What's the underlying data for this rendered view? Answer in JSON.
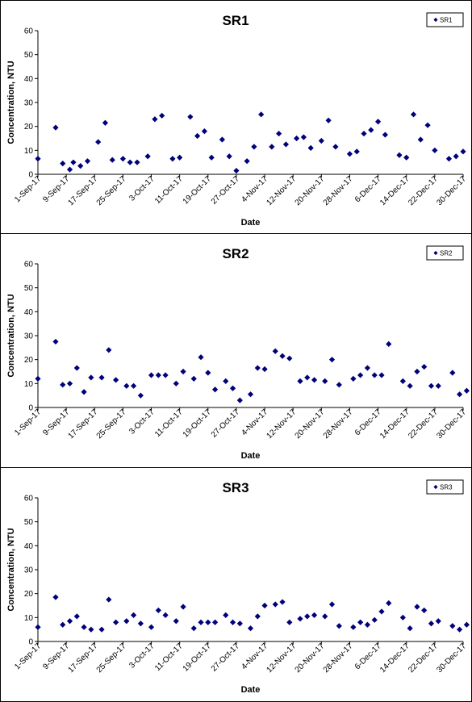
{
  "colors": {
    "marker": "#00007a",
    "axis": "#000000"
  },
  "chart_data": [
    {
      "type": "scatter",
      "title": "SR1",
      "xlabel": "Date",
      "ylabel": "Concentration, NTU",
      "legend": "top-right",
      "grid": false,
      "ylim": [
        0,
        60
      ],
      "yticks": [
        0,
        10,
        20,
        30,
        40,
        50,
        60
      ],
      "xlim": [
        "2017-09-01",
        "2017-12-30"
      ],
      "xticks": [
        "1-Sep-17",
        "9-Sep-17",
        "17-Sep-17",
        "25-Sep-17",
        "3-Oct-17",
        "11-Oct-17",
        "19-Oct-17",
        "27-Oct-17",
        "4-Nov-17",
        "12-Nov-17",
        "20-Nov-17",
        "28-Nov-17",
        "6-Dec-17",
        "14-Dec-17",
        "22-Dec-17",
        "30-Dec-17"
      ],
      "series": [
        {
          "name": "SR1",
          "points": [
            [
              "2017-09-01",
              6.5
            ],
            [
              "2017-09-06",
              19.5
            ],
            [
              "2017-09-08",
              4.5
            ],
            [
              "2017-09-10",
              2.0
            ],
            [
              "2017-09-11",
              5.0
            ],
            [
              "2017-09-13",
              3.5
            ],
            [
              "2017-09-15",
              5.5
            ],
            [
              "2017-09-18",
              13.5
            ],
            [
              "2017-09-20",
              21.5
            ],
            [
              "2017-09-22",
              6.0
            ],
            [
              "2017-09-25",
              6.5
            ],
            [
              "2017-09-27",
              5.0
            ],
            [
              "2017-09-29",
              5.0
            ],
            [
              "2017-10-02",
              7.5
            ],
            [
              "2017-10-04",
              23.0
            ],
            [
              "2017-10-06",
              24.5
            ],
            [
              "2017-10-09",
              6.5
            ],
            [
              "2017-10-11",
              7.0
            ],
            [
              "2017-10-14",
              24.0
            ],
            [
              "2017-10-16",
              16.0
            ],
            [
              "2017-10-18",
              18.0
            ],
            [
              "2017-10-20",
              7.0
            ],
            [
              "2017-10-23",
              14.5
            ],
            [
              "2017-10-25",
              7.5
            ],
            [
              "2017-10-27",
              1.5
            ],
            [
              "2017-10-30",
              5.5
            ],
            [
              "2017-11-01",
              11.5
            ],
            [
              "2017-11-03",
              25.0
            ],
            [
              "2017-11-06",
              11.5
            ],
            [
              "2017-11-08",
              17.0
            ],
            [
              "2017-11-10",
              12.5
            ],
            [
              "2017-11-13",
              15.0
            ],
            [
              "2017-11-15",
              15.5
            ],
            [
              "2017-11-17",
              11.0
            ],
            [
              "2017-11-20",
              14.0
            ],
            [
              "2017-11-22",
              22.5
            ],
            [
              "2017-11-24",
              11.5
            ],
            [
              "2017-11-28",
              8.5
            ],
            [
              "2017-11-30",
              9.5
            ],
            [
              "2017-12-02",
              17.0
            ],
            [
              "2017-12-04",
              18.5
            ],
            [
              "2017-12-06",
              22.0
            ],
            [
              "2017-12-08",
              16.5
            ],
            [
              "2017-12-12",
              8.0
            ],
            [
              "2017-12-14",
              7.0
            ],
            [
              "2017-12-16",
              25.0
            ],
            [
              "2017-12-18",
              14.5
            ],
            [
              "2017-12-20",
              20.5
            ],
            [
              "2017-12-22",
              10.0
            ],
            [
              "2017-12-26",
              6.5
            ],
            [
              "2017-12-28",
              7.5
            ],
            [
              "2017-12-30",
              9.5
            ]
          ]
        }
      ]
    },
    {
      "type": "scatter",
      "title": "SR2",
      "xlabel": "Date",
      "ylabel": "Concentration, NTU",
      "legend": "top-right",
      "grid": false,
      "ylim": [
        0,
        60
      ],
      "yticks": [
        0,
        10,
        20,
        30,
        40,
        50,
        60
      ],
      "xlim": [
        "2017-09-01",
        "2017-12-30"
      ],
      "xticks": [
        "1-Sep-17",
        "9-Sep-17",
        "17-Sep-17",
        "25-Sep-17",
        "3-Oct-17",
        "11-Oct-17",
        "19-Oct-17",
        "27-Oct-17",
        "4-Nov-17",
        "12-Nov-17",
        "20-Nov-17",
        "28-Nov-17",
        "6-Dec-17",
        "14-Dec-17",
        "22-Dec-17",
        "30-Dec-17"
      ],
      "series": [
        {
          "name": "SR2",
          "points": [
            [
              "2017-09-01",
              12.0
            ],
            [
              "2017-09-06",
              27.5
            ],
            [
              "2017-09-08",
              9.5
            ],
            [
              "2017-09-10",
              10.0
            ],
            [
              "2017-09-12",
              16.5
            ],
            [
              "2017-09-14",
              6.5
            ],
            [
              "2017-09-16",
              12.5
            ],
            [
              "2017-09-19",
              12.5
            ],
            [
              "2017-09-21",
              24.0
            ],
            [
              "2017-09-23",
              11.5
            ],
            [
              "2017-09-26",
              9.0
            ],
            [
              "2017-09-28",
              9.0
            ],
            [
              "2017-09-30",
              5.0
            ],
            [
              "2017-10-03",
              13.5
            ],
            [
              "2017-10-05",
              13.5
            ],
            [
              "2017-10-07",
              13.5
            ],
            [
              "2017-10-10",
              10.0
            ],
            [
              "2017-10-12",
              15.0
            ],
            [
              "2017-10-15",
              12.0
            ],
            [
              "2017-10-17",
              21.0
            ],
            [
              "2017-10-19",
              14.5
            ],
            [
              "2017-10-21",
              7.5
            ],
            [
              "2017-10-24",
              11.0
            ],
            [
              "2017-10-26",
              8.0
            ],
            [
              "2017-10-28",
              3.0
            ],
            [
              "2017-10-31",
              5.5
            ],
            [
              "2017-11-02",
              16.5
            ],
            [
              "2017-11-04",
              16.0
            ],
            [
              "2017-11-07",
              23.5
            ],
            [
              "2017-11-09",
              21.5
            ],
            [
              "2017-11-11",
              20.5
            ],
            [
              "2017-11-14",
              11.0
            ],
            [
              "2017-11-16",
              12.5
            ],
            [
              "2017-11-18",
              11.5
            ],
            [
              "2017-11-21",
              11.0
            ],
            [
              "2017-11-23",
              20.0
            ],
            [
              "2017-11-25",
              9.5
            ],
            [
              "2017-11-29",
              12.0
            ],
            [
              "2017-12-01",
              13.5
            ],
            [
              "2017-12-03",
              16.5
            ],
            [
              "2017-12-05",
              13.5
            ],
            [
              "2017-12-07",
              13.5
            ],
            [
              "2017-12-09",
              26.5
            ],
            [
              "2017-12-13",
              11.0
            ],
            [
              "2017-12-15",
              9.0
            ],
            [
              "2017-12-17",
              15.0
            ],
            [
              "2017-12-19",
              17.0
            ],
            [
              "2017-12-21",
              9.0
            ],
            [
              "2017-12-23",
              9.0
            ],
            [
              "2017-12-27",
              14.5
            ],
            [
              "2017-12-29",
              5.5
            ],
            [
              "2017-12-31",
              7.0
            ]
          ]
        }
      ]
    },
    {
      "type": "scatter",
      "title": "SR3",
      "xlabel": "Date",
      "ylabel": "Concentration, NTU",
      "legend": "top-right",
      "grid": false,
      "ylim": [
        0,
        60
      ],
      "yticks": [
        0,
        10,
        20,
        30,
        40,
        50,
        60
      ],
      "xlim": [
        "2017-09-01",
        "2017-12-30"
      ],
      "xticks": [
        "1-Sep-17",
        "9-Sep-17",
        "17-Sep-17",
        "25-Sep-17",
        "3-Oct-17",
        "11-Oct-17",
        "19-Oct-17",
        "27-Oct-17",
        "4-Nov-17",
        "12-Nov-17",
        "20-Nov-17",
        "28-Nov-17",
        "6-Dec-17",
        "14-Dec-17",
        "22-Dec-17",
        "30-Dec-17"
      ],
      "series": [
        {
          "name": "SR3",
          "points": [
            [
              "2017-09-01",
              6.0
            ],
            [
              "2017-09-06",
              18.5
            ],
            [
              "2017-09-08",
              7.0
            ],
            [
              "2017-09-10",
              8.5
            ],
            [
              "2017-09-12",
              10.5
            ],
            [
              "2017-09-14",
              6.0
            ],
            [
              "2017-09-16",
              5.0
            ],
            [
              "2017-09-19",
              5.0
            ],
            [
              "2017-09-21",
              17.5
            ],
            [
              "2017-09-23",
              8.0
            ],
            [
              "2017-09-26",
              8.5
            ],
            [
              "2017-09-28",
              11.0
            ],
            [
              "2017-09-30",
              7.5
            ],
            [
              "2017-10-03",
              6.0
            ],
            [
              "2017-10-05",
              13.0
            ],
            [
              "2017-10-07",
              11.0
            ],
            [
              "2017-10-10",
              8.5
            ],
            [
              "2017-10-12",
              14.5
            ],
            [
              "2017-10-15",
              5.5
            ],
            [
              "2017-10-17",
              8.0
            ],
            [
              "2017-10-19",
              8.0
            ],
            [
              "2017-10-21",
              8.0
            ],
            [
              "2017-10-24",
              11.0
            ],
            [
              "2017-10-26",
              8.0
            ],
            [
              "2017-10-28",
              7.5
            ],
            [
              "2017-10-31",
              5.5
            ],
            [
              "2017-11-02",
              10.5
            ],
            [
              "2017-11-04",
              15.0
            ],
            [
              "2017-11-07",
              15.5
            ],
            [
              "2017-11-09",
              16.5
            ],
            [
              "2017-11-11",
              8.0
            ],
            [
              "2017-11-14",
              9.5
            ],
            [
              "2017-11-16",
              10.5
            ],
            [
              "2017-11-18",
              11.0
            ],
            [
              "2017-11-21",
              10.5
            ],
            [
              "2017-11-23",
              15.5
            ],
            [
              "2017-11-25",
              6.5
            ],
            [
              "2017-11-29",
              6.0
            ],
            [
              "2017-12-01",
              8.0
            ],
            [
              "2017-12-03",
              7.0
            ],
            [
              "2017-12-05",
              9.0
            ],
            [
              "2017-12-07",
              12.5
            ],
            [
              "2017-12-09",
              16.0
            ],
            [
              "2017-12-13",
              10.0
            ],
            [
              "2017-12-15",
              5.5
            ],
            [
              "2017-12-17",
              14.5
            ],
            [
              "2017-12-19",
              13.0
            ],
            [
              "2017-12-21",
              7.5
            ],
            [
              "2017-12-23",
              8.5
            ],
            [
              "2017-12-27",
              6.5
            ],
            [
              "2017-12-29",
              5.0
            ],
            [
              "2017-12-31",
              7.0
            ]
          ]
        }
      ]
    }
  ]
}
